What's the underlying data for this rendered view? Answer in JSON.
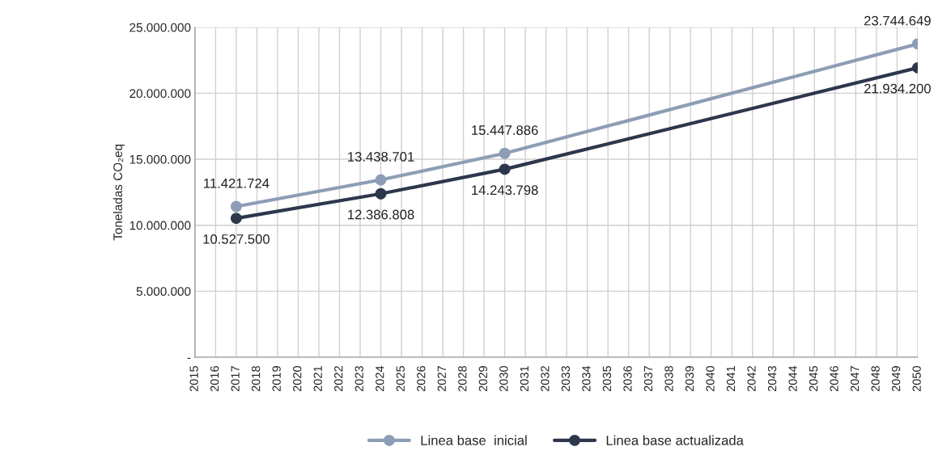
{
  "chart_data": {
    "type": "line",
    "ylabel": "Toneladas CO₂eq",
    "categories": [
      "2015",
      "2016",
      "2017",
      "2018",
      "2019",
      "2020",
      "2021",
      "2022",
      "2023",
      "2024",
      "2025",
      "2026",
      "2027",
      "2028",
      "2029",
      "2030",
      "2031",
      "2032",
      "2033",
      "2034",
      "2035",
      "2036",
      "2037",
      "2038",
      "2039",
      "2040",
      "2041",
      "2042",
      "2043",
      "2044",
      "2045",
      "2046",
      "2047",
      "2048",
      "2049",
      "2050"
    ],
    "series": [
      {
        "name": "Linea base  inicial",
        "color": "#8d9db5",
        "values": [
          null,
          null,
          11421724,
          null,
          null,
          null,
          null,
          null,
          null,
          13438701,
          null,
          null,
          null,
          null,
          null,
          15447886,
          null,
          null,
          null,
          null,
          null,
          null,
          null,
          null,
          null,
          null,
          null,
          null,
          null,
          null,
          null,
          null,
          null,
          null,
          null,
          23744649
        ],
        "value_labels": [
          null,
          null,
          "11.421.724",
          null,
          null,
          null,
          null,
          null,
          null,
          "13.438.701",
          null,
          null,
          null,
          null,
          null,
          "15.447.886",
          null,
          null,
          null,
          null,
          null,
          null,
          null,
          null,
          null,
          null,
          null,
          null,
          null,
          null,
          null,
          null,
          null,
          null,
          null,
          "23.744.649"
        ]
      },
      {
        "name": "Linea base actualizada",
        "color": "#2d374b",
        "values": [
          null,
          null,
          10527500,
          null,
          null,
          null,
          null,
          null,
          null,
          12386808,
          null,
          null,
          null,
          null,
          null,
          14243798,
          null,
          null,
          null,
          null,
          null,
          null,
          null,
          null,
          null,
          null,
          null,
          null,
          null,
          null,
          null,
          null,
          null,
          null,
          null,
          21934200
        ],
        "value_labels": [
          null,
          null,
          "10.527.500",
          null,
          null,
          null,
          null,
          null,
          null,
          "12.386.808",
          null,
          null,
          null,
          null,
          null,
          "14.243.798",
          null,
          null,
          null,
          null,
          null,
          null,
          null,
          null,
          null,
          null,
          null,
          null,
          null,
          null,
          null,
          null,
          null,
          null,
          null,
          "21.934.200"
        ]
      }
    ],
    "ylim": [
      0,
      25000000
    ],
    "yticks": [
      {
        "value": 0,
        "label": "-"
      },
      {
        "value": 5000000,
        "label": "5.000.000"
      },
      {
        "value": 10000000,
        "label": "10.000.000"
      },
      {
        "value": 15000000,
        "label": "15.000.000"
      },
      {
        "value": 20000000,
        "label": "20.000.000"
      },
      {
        "value": 25000000,
        "label": "25.000.000"
      }
    ],
    "grid": true,
    "legend": "bottom",
    "marker": "circle",
    "line_style": "solid"
  }
}
